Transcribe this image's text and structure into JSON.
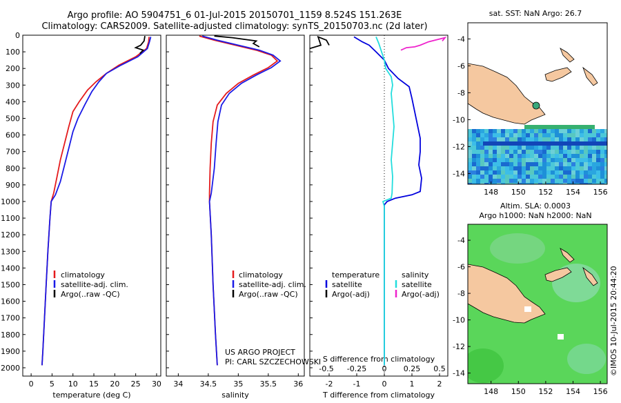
{
  "header": {
    "title_line1": "Argo profile: AO 5904751_6 01-Jul-2015 20150701_1159 8.524S 151.263E",
    "title_line2": "Climatology: CARS2009. Satellite-adjusted climatology: synTS_20150703.nc (2d later)"
  },
  "colors": {
    "climatology": "#e41a1c",
    "satellite": "#1a1ae6",
    "argo": "#000000",
    "sat_t": "#0000dd",
    "sat_s": "#22dddd",
    "argo_s": "#ee22cc",
    "land": "#f5c8a0"
  },
  "chart_data": [
    {
      "type": "line",
      "xlabel": "temperature (deg C)",
      "ylabel": "",
      "xlim": [
        -2,
        31
      ],
      "ylim": [
        0,
        2050
      ],
      "xticks": [
        "0",
        "5",
        "10",
        "15",
        "20",
        "25",
        "30"
      ],
      "yticks": [
        "0",
        "100",
        "200",
        "300",
        "400",
        "500",
        "600",
        "700",
        "800",
        "900",
        "1000",
        "1100",
        "1200",
        "1300",
        "1400",
        "1500",
        "1600",
        "1700",
        "1800",
        "1900",
        "2000"
      ],
      "legend": [
        "climatology",
        "satellite-adj. clim.",
        "Argo(..raw -QC)"
      ],
      "series": [
        {
          "name": "climatology",
          "color": "#e41a1c",
          "points": [
            [
              28.2,
              10
            ],
            [
              28.1,
              40
            ],
            [
              27.6,
              80
            ],
            [
              25,
              130
            ],
            [
              21,
              180
            ],
            [
              18,
              230
            ],
            [
              15.5,
              280
            ],
            [
              13.5,
              330
            ],
            [
              11.5,
              400
            ],
            [
              10,
              460
            ],
            [
              9,
              550
            ],
            [
              8,
              650
            ],
            [
              7,
              750
            ],
            [
              6.2,
              850
            ],
            [
              5.4,
              950
            ],
            [
              4.8,
              1000
            ],
            [
              4.5,
              1100
            ],
            [
              4,
              1300
            ],
            [
              3.6,
              1500
            ],
            [
              3.2,
              1700
            ],
            [
              2.8,
              1900
            ],
            [
              2.6,
              1985
            ]
          ]
        },
        {
          "name": "satellite-adj. clim.",
          "color": "#1a1ae6",
          "points": [
            [
              28.6,
              10
            ],
            [
              28.3,
              40
            ],
            [
              27.8,
              80
            ],
            [
              25.5,
              130
            ],
            [
              21.5,
              180
            ],
            [
              18,
              230
            ],
            [
              16.2,
              280
            ],
            [
              14.5,
              340
            ],
            [
              12.8,
              420
            ],
            [
              11.2,
              500
            ],
            [
              10,
              580
            ],
            [
              9,
              680
            ],
            [
              8,
              780
            ],
            [
              7,
              880
            ],
            [
              5.8,
              960
            ],
            [
              4.8,
              1000
            ],
            [
              4.5,
              1100
            ],
            [
              4,
              1300
            ],
            [
              3.6,
              1500
            ],
            [
              3.2,
              1700
            ],
            [
              2.8,
              1900
            ],
            [
              2.6,
              1985
            ]
          ]
        },
        {
          "name": "Argo(..raw -QC)",
          "color": "#000000",
          "points": [
            [
              27.2,
              5
            ],
            [
              27,
              35
            ],
            [
              26.2,
              60
            ],
            [
              25,
              75
            ],
            [
              26.8,
              90
            ],
            [
              26,
              110
            ]
          ]
        }
      ]
    },
    {
      "type": "line",
      "xlabel": "salinity",
      "xlim": [
        33.8,
        36.1
      ],
      "ylim": [
        0,
        2050
      ],
      "xticks": [
        "34",
        "34.5",
        "35",
        "35.5",
        "36"
      ],
      "legend": [
        "climatology",
        "satellite-adj. clim.",
        "Argo(..raw -QC)"
      ],
      "series": [
        {
          "name": "climatology",
          "color": "#e41a1c",
          "points": [
            [
              34.35,
              5
            ],
            [
              34.6,
              30
            ],
            [
              34.95,
              60
            ],
            [
              35.3,
              90
            ],
            [
              35.55,
              120
            ],
            [
              35.65,
              155
            ],
            [
              35.5,
              195
            ],
            [
              35.25,
              240
            ],
            [
              35,
              290
            ],
            [
              34.8,
              350
            ],
            [
              34.65,
              420
            ],
            [
              34.58,
              520
            ],
            [
              34.55,
              650
            ],
            [
              34.53,
              800
            ],
            [
              34.52,
              950
            ],
            [
              34.52,
              1000
            ],
            [
              34.55,
              1200
            ],
            [
              34.58,
              1500
            ],
            [
              34.62,
              1800
            ],
            [
              34.65,
              1985
            ]
          ]
        },
        {
          "name": "satellite-adj. clim.",
          "color": "#1a1ae6",
          "points": [
            [
              34.4,
              5
            ],
            [
              34.65,
              30
            ],
            [
              35,
              60
            ],
            [
              35.35,
              90
            ],
            [
              35.58,
              120
            ],
            [
              35.7,
              155
            ],
            [
              35.55,
              195
            ],
            [
              35.3,
              240
            ],
            [
              35.05,
              290
            ],
            [
              34.85,
              350
            ],
            [
              34.72,
              420
            ],
            [
              34.66,
              520
            ],
            [
              34.63,
              650
            ],
            [
              34.6,
              800
            ],
            [
              34.55,
              950
            ],
            [
              34.52,
              1000
            ],
            [
              34.55,
              1200
            ],
            [
              34.58,
              1500
            ],
            [
              34.62,
              1800
            ],
            [
              34.65,
              1985
            ]
          ]
        },
        {
          "name": "Argo(..raw -QC)",
          "color": "#000000",
          "points": [
            [
              34.6,
              5
            ],
            [
              34.9,
              15
            ],
            [
              35.1,
              25
            ],
            [
              35.3,
              35
            ],
            [
              35.25,
              50
            ],
            [
              35.35,
              70
            ]
          ]
        }
      ]
    },
    {
      "type": "line",
      "xlabel": "T difference from climatology",
      "xlabel_top": "S difference from climatology",
      "xlim": [
        -2.7,
        2.3
      ],
      "ylim": [
        0,
        2050
      ],
      "xticks": [
        "-2",
        "-1",
        "0",
        "1",
        "2"
      ],
      "xticks_top": [
        "-0.5",
        "-0.25",
        "0",
        "0.25",
        "0.5"
      ],
      "legend_titles": [
        "temperature",
        "salinity"
      ],
      "legend": [
        "satellite",
        "Argo(-adj)",
        "satellite",
        "Argo(-adj)"
      ],
      "series": [
        {
          "name": "satellite T",
          "color": "#0000dd",
          "points": [
            [
              -1.1,
              10
            ],
            [
              -0.8,
              40
            ],
            [
              -0.55,
              60
            ],
            [
              -0.3,
              100
            ],
            [
              0,
              150
            ],
            [
              0.15,
              200
            ],
            [
              0.5,
              260
            ],
            [
              0.9,
              310
            ],
            [
              1,
              380
            ],
            [
              1.1,
              460
            ],
            [
              1.2,
              540
            ],
            [
              1.3,
              620
            ],
            [
              1.3,
              700
            ],
            [
              1.25,
              780
            ],
            [
              1.35,
              860
            ],
            [
              1.3,
              940
            ],
            [
              1,
              960
            ],
            [
              0.4,
              980
            ],
            [
              0.1,
              1000
            ],
            [
              0,
              1020
            ],
            [
              0,
              1985
            ]
          ]
        },
        {
          "name": "satellite S",
          "color": "#22dddd",
          "points": [
            [
              -0.3,
              10
            ],
            [
              -0.2,
              50
            ],
            [
              -0.1,
              100
            ],
            [
              0,
              150
            ],
            [
              0.05,
              200
            ],
            [
              0.25,
              250
            ],
            [
              0.3,
              300
            ],
            [
              0.25,
              350
            ],
            [
              0.3,
              450
            ],
            [
              0.35,
              550
            ],
            [
              0.3,
              650
            ],
            [
              0.25,
              750
            ],
            [
              0.3,
              850
            ],
            [
              0.28,
              950
            ],
            [
              0.25,
              980
            ],
            [
              -0.05,
              1000
            ],
            [
              0,
              1030
            ],
            [
              0,
              1985
            ]
          ]
        },
        {
          "name": "Argo T",
          "color": "#000000",
          "points": [
            [
              -2.7,
              80
            ],
            [
              -2.3,
              60
            ],
            [
              -2.4,
              10
            ],
            [
              -2.1,
              30
            ],
            [
              -2,
              60
            ]
          ]
        },
        {
          "name": "Argo S",
          "color": "#ee22cc",
          "points": [
            [
              0.6,
              90
            ],
            [
              0.8,
              75
            ],
            [
              1.1,
              70
            ],
            [
              1.3,
              60
            ],
            [
              1.6,
              40
            ],
            [
              2.2,
              15
            ],
            [
              2.1,
              35
            ]
          ]
        }
      ]
    },
    {
      "type": "heatmap",
      "title": "sat. SST: NaN Argo: 26.7",
      "xticks": [
        "148",
        "150",
        "152",
        "154",
        "156"
      ],
      "yticks": [
        "-4",
        "-6",
        "-8",
        "-10",
        "-12",
        "-14"
      ],
      "xlim": [
        146.3,
        156.5
      ],
      "ylim": [
        -14.8,
        -2.8
      ]
    },
    {
      "type": "heatmap",
      "title": "Altim. SLA: 0.0003",
      "subtitle": "Argo h1000: NaN h2000: NaN",
      "xticks": [
        "148",
        "150",
        "152",
        "154",
        "156"
      ],
      "yticks": [
        "-4",
        "-6",
        "-8",
        "-10",
        "-12",
        "-14"
      ],
      "xlim": [
        146.3,
        156.5
      ],
      "ylim": [
        -14.8,
        -2.8
      ]
    }
  ],
  "annotations": {
    "project": "US ARGO PROJECT",
    "pi": "PI: CARL SZCZECHOWSKI",
    "credit": "©IMOS 10-Jul-2015 20:44:20"
  }
}
